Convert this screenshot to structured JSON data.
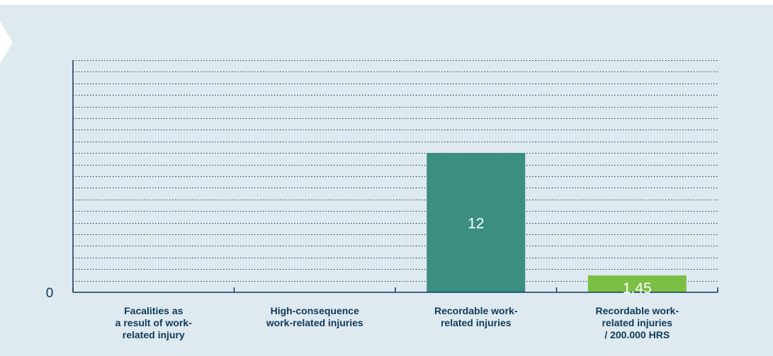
{
  "chart_data": {
    "type": "bar",
    "categories": [
      [
        "Facalities as",
        "a result of work-",
        "related injury"
      ],
      [
        "High-consequence",
        "work-related injuries"
      ],
      [
        "Recordable work-",
        "related injuries"
      ],
      [
        "Recordable work-",
        "related injuries",
        "/ 200.000 HRS"
      ]
    ],
    "values": [
      null,
      null,
      12,
      1.45
    ],
    "data_labels": [
      "",
      "",
      "12",
      "1,45"
    ],
    "y_tick_labels": [
      {
        "value": 0,
        "label": "0"
      }
    ],
    "ylim": [
      0,
      20
    ],
    "grid": true,
    "title": "",
    "xlabel": "",
    "ylabel": "",
    "colors": {
      "background": "#dfeaf0",
      "axis": "#0e3a5c",
      "grid": "#0e3a5c",
      "text": "#0e3a5c",
      "bar_label": "#ffffff",
      "bars": [
        "#3a8f80",
        "#3a8f80",
        "#3a8f80",
        "#7bbf45"
      ]
    }
  }
}
